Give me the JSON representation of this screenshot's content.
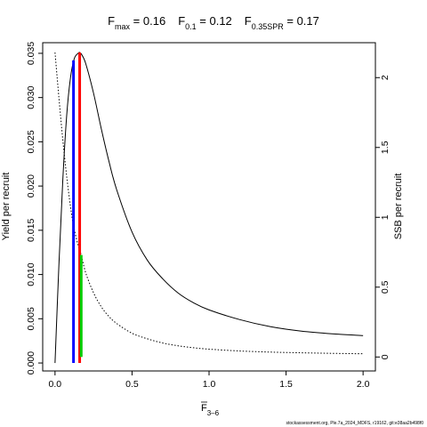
{
  "chart_data": {
    "type": "line",
    "title_parts": {
      "fmax_label": "F",
      "fmax_sub": "max",
      "fmax_value": " = 0.16",
      "f01_label": "F",
      "f01_sub": "0.1",
      "f01_value": " = 0.12",
      "fspr_label": "F",
      "fspr_sub": "0.35SPR",
      "fspr_value": " = 0.17"
    },
    "xlabel": "F",
    "xlabel_sub": "3–6",
    "ylabel_left": "Yield per recruit",
    "ylabel_right": "SSB per recruit",
    "xlim": [
      -0.08,
      2.08
    ],
    "ylim_left": [
      -0.0009,
      0.0362
    ],
    "ylim_right": [
      -0.1,
      2.25
    ],
    "x_ticks": [
      0,
      0.5,
      1,
      1.5,
      2
    ],
    "x_tick_labels": [
      "0.0",
      "0.5",
      "1.0",
      "1.5",
      "2.0"
    ],
    "y_left_ticks": [
      0,
      0.005,
      0.01,
      0.015,
      0.02,
      0.025,
      0.03,
      0.035
    ],
    "y_left_tick_labels": [
      "0.000",
      "0.005",
      "0.010",
      "0.015",
      "0.020",
      "0.025",
      "0.030",
      "0.035"
    ],
    "y_right_ticks": [
      0,
      0.5,
      1,
      1.5,
      2
    ],
    "y_right_tick_labels": [
      "0",
      "0.5",
      "1",
      "1.5",
      "2"
    ],
    "series": [
      {
        "axis": "left",
        "line_style": "solid",
        "color": "#000000",
        "x": [
          0,
          0.025,
          0.05,
          0.075,
          0.1,
          0.125,
          0.15,
          0.16,
          0.175,
          0.2,
          0.25,
          0.3,
          0.35,
          0.4,
          0.5,
          0.6,
          0.7,
          0.8,
          0.9,
          1.0,
          1.2,
          1.4,
          1.6,
          1.8,
          2.0
        ],
        "y": [
          0,
          0.011,
          0.0205,
          0.0278,
          0.0322,
          0.0344,
          0.035,
          0.0351,
          0.0348,
          0.0338,
          0.0305,
          0.0265,
          0.0228,
          0.0196,
          0.0148,
          0.0116,
          0.0095,
          0.0079,
          0.0068,
          0.006,
          0.0049,
          0.0041,
          0.0036,
          0.0033,
          0.0031
        ]
      },
      {
        "axis": "right",
        "line_style": "dotted",
        "color": "#000000",
        "x": [
          0,
          0.025,
          0.05,
          0.075,
          0.1,
          0.12,
          0.15,
          0.17,
          0.2,
          0.25,
          0.3,
          0.35,
          0.4,
          0.5,
          0.6,
          0.7,
          0.8,
          0.9,
          1.0,
          1.2,
          1.4,
          1.6,
          1.8,
          2.0
        ],
        "y": [
          2.18,
          1.86,
          1.56,
          1.3,
          1.08,
          0.94,
          0.8,
          0.73,
          0.6,
          0.46,
          0.36,
          0.29,
          0.24,
          0.17,
          0.13,
          0.1,
          0.08,
          0.066,
          0.056,
          0.043,
          0.035,
          0.03,
          0.026,
          0.023
        ]
      }
    ],
    "reference_lines": [
      {
        "name": "F0.1",
        "x": 0.12,
        "y_from": 0,
        "y_to": 0.0342,
        "axis": "left",
        "color": "#0000ff"
      },
      {
        "name": "Fmax",
        "x": 0.16,
        "y_from": 0,
        "y_to": 0.0351,
        "axis": "left",
        "color": "#ff0000"
      },
      {
        "name": "F0.35SPR",
        "x": 0.17,
        "y_from": 0,
        "y_to": 0.73,
        "axis": "right",
        "color": "#00cc00"
      }
    ],
    "grid": false,
    "legend": "none"
  },
  "footer": {
    "credit": "stockassessment.org, Ple.7a_2024_MDFS, r19162, git:e38aa2b498f0"
  }
}
